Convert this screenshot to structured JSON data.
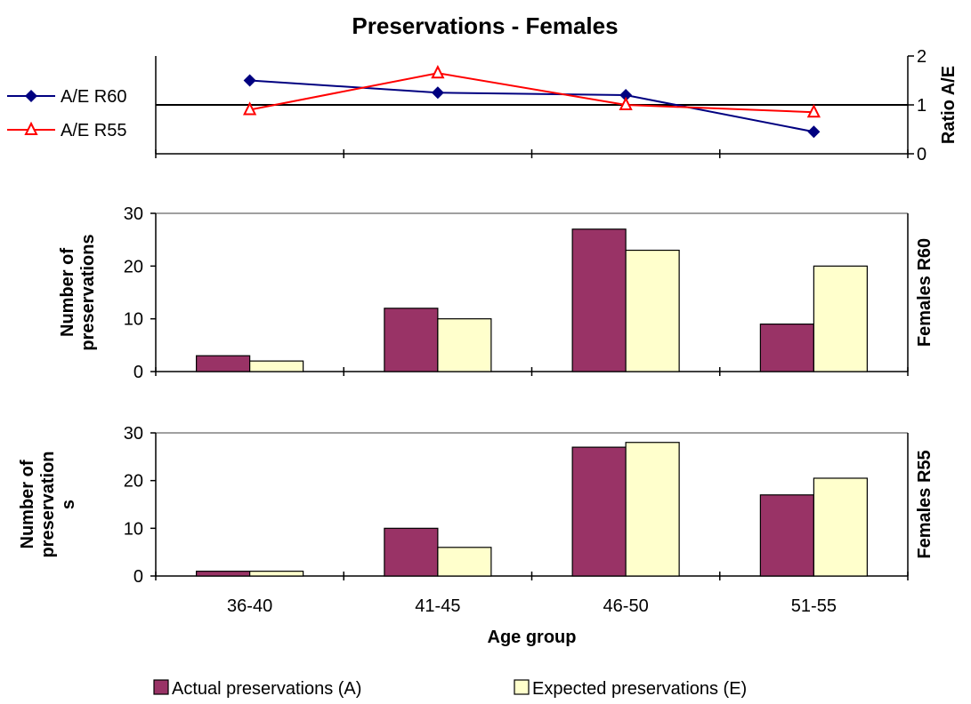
{
  "title": "Preservations - Females",
  "chart_data": [
    {
      "type": "line",
      "categories": [
        "36-40",
        "41-45",
        "46-50",
        "51-55"
      ],
      "series": [
        {
          "name": "A/E R60",
          "values": [
            1.5,
            1.25,
            1.2,
            0.45
          ],
          "color": "#000080",
          "marker": "diamond"
        },
        {
          "name": "A/E R55",
          "values": [
            0.9,
            1.65,
            1.0,
            0.85
          ],
          "color": "#ff0000",
          "marker": "triangle-open"
        }
      ],
      "ylabel": "Ratio A/E",
      "y_axis_side": "right",
      "ylim": [
        0,
        2
      ],
      "yticks": [
        "0",
        "1",
        "2"
      ],
      "reference_line": 1,
      "legend": "left"
    },
    {
      "type": "bar",
      "categories": [
        "36-40",
        "41-45",
        "46-50",
        "51-55"
      ],
      "series": [
        {
          "name": "Actual preservations (A)",
          "values": [
            3,
            12,
            27,
            9
          ],
          "color": "#993366"
        },
        {
          "name": "Expected preservations (E)",
          "values": [
            2,
            10,
            23,
            20
          ],
          "color": "#ffffcc"
        }
      ],
      "ylabel": "Number of preservations",
      "side_label": "Females R60",
      "ylim": [
        0,
        30
      ],
      "yticks": [
        "0",
        "10",
        "20",
        "30"
      ],
      "grid": "top-line"
    },
    {
      "type": "bar",
      "categories": [
        "36-40",
        "41-45",
        "46-50",
        "51-55"
      ],
      "series": [
        {
          "name": "Actual preservations (A)",
          "values": [
            1,
            10,
            27,
            17
          ],
          "color": "#993366"
        },
        {
          "name": "Expected preservations (E)",
          "values": [
            1,
            6,
            28,
            20.5
          ],
          "color": "#ffffcc"
        }
      ],
      "ylabel": "Number of preservations",
      "side_label": "Females R55",
      "ylim": [
        0,
        30
      ],
      "yticks": [
        "0",
        "10",
        "20",
        "30"
      ],
      "xlabel": "Age group",
      "grid": "top-line"
    }
  ],
  "ylabel_lines": {
    "r60": [
      "Number of",
      "preservations"
    ],
    "r55": [
      "Number of",
      "preservation",
      "s"
    ]
  },
  "legend": [
    {
      "label": "Actual preservations (A)",
      "color": "#993366"
    },
    {
      "label": "Expected preservations (E)",
      "color": "#ffffcc"
    }
  ],
  "line_legend": [
    {
      "label": "A/E R60",
      "color": "#000080",
      "marker": "diamond"
    },
    {
      "label": "A/E R55",
      "color": "#ff0000",
      "marker": "triangle-open"
    }
  ]
}
